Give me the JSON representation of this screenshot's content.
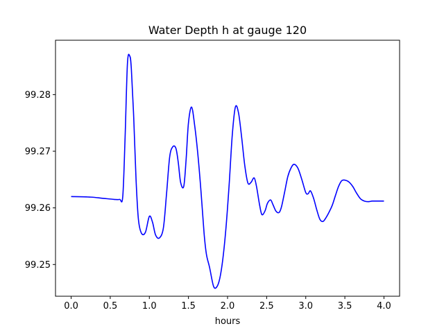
{
  "chart_data": {
    "type": "line",
    "title": "Water Depth h at gauge 120",
    "xlabel": "hours",
    "ylabel": "",
    "xlim": [
      -0.2,
      4.2
    ],
    "ylim": [
      99.2444,
      99.2896
    ],
    "xticks": [
      0.0,
      0.5,
      1.0,
      1.5,
      2.0,
      2.5,
      3.0,
      3.5,
      4.0
    ],
    "xtick_labels": [
      "0.0",
      "0.5",
      "1.0",
      "1.5",
      "2.0",
      "2.5",
      "3.0",
      "3.5",
      "4.0"
    ],
    "yticks": [
      99.25,
      99.26,
      99.27,
      99.28
    ],
    "ytick_labels": [
      "99.25",
      "99.26",
      "99.27",
      "99.28"
    ],
    "grid": false,
    "legend": "none",
    "series": [
      {
        "color": "#0000ff",
        "x": [
          0.0,
          0.25,
          0.4,
          0.55,
          0.62,
          0.66,
          0.69,
          0.72,
          0.75,
          0.77,
          0.8,
          0.83,
          0.86,
          0.9,
          0.95,
          1.0,
          1.04,
          1.08,
          1.13,
          1.18,
          1.22,
          1.26,
          1.3,
          1.34,
          1.37,
          1.4,
          1.44,
          1.47,
          1.5,
          1.54,
          1.58,
          1.62,
          1.66,
          1.7,
          1.73,
          1.77,
          1.82,
          1.86,
          1.9,
          1.94,
          1.98,
          2.02,
          2.06,
          2.1,
          2.14,
          2.18,
          2.22,
          2.26,
          2.3,
          2.34,
          2.37,
          2.41,
          2.44,
          2.48,
          2.51,
          2.55,
          2.58,
          2.62,
          2.66,
          2.69,
          2.73,
          2.77,
          2.81,
          2.85,
          2.9,
          2.95,
          3.0,
          3.03,
          3.06,
          3.1,
          3.14,
          3.18,
          3.22,
          3.26,
          3.3,
          3.34,
          3.38,
          3.42,
          3.46,
          3.5,
          3.55,
          3.6,
          3.65,
          3.7,
          3.75,
          3.8,
          3.85,
          3.9,
          3.95,
          4.0
        ],
        "y": [
          99.262,
          99.2619,
          99.2617,
          99.2615,
          99.2615,
          99.262,
          99.2725,
          99.2855,
          99.2868,
          99.2845,
          99.276,
          99.265,
          99.258,
          99.2555,
          99.2557,
          99.2585,
          99.2575,
          99.2552,
          99.2547,
          99.2565,
          99.2625,
          99.269,
          99.2708,
          99.2705,
          99.268,
          99.2645,
          99.2638,
          99.2685,
          99.275,
          99.2778,
          99.2745,
          99.2695,
          99.263,
          99.2555,
          99.2518,
          99.2495,
          99.2462,
          99.246,
          99.2475,
          99.251,
          99.2565,
          99.264,
          99.2728,
          99.2778,
          99.2768,
          99.2725,
          99.2675,
          99.2644,
          99.2645,
          99.2653,
          99.2638,
          99.2605,
          99.2588,
          99.2595,
          99.2608,
          99.2614,
          99.2606,
          99.2594,
          99.2592,
          99.2602,
          99.2628,
          99.2655,
          99.267,
          99.2677,
          99.267,
          99.265,
          99.2627,
          99.2625,
          99.263,
          99.2617,
          99.2597,
          99.258,
          99.2576,
          99.2583,
          99.2593,
          99.2605,
          99.2622,
          99.2638,
          99.2648,
          99.2649,
          99.2646,
          99.2638,
          99.2626,
          99.2616,
          99.2612,
          99.2611,
          99.2612,
          99.2612,
          99.2612,
          99.2612
        ]
      }
    ]
  }
}
